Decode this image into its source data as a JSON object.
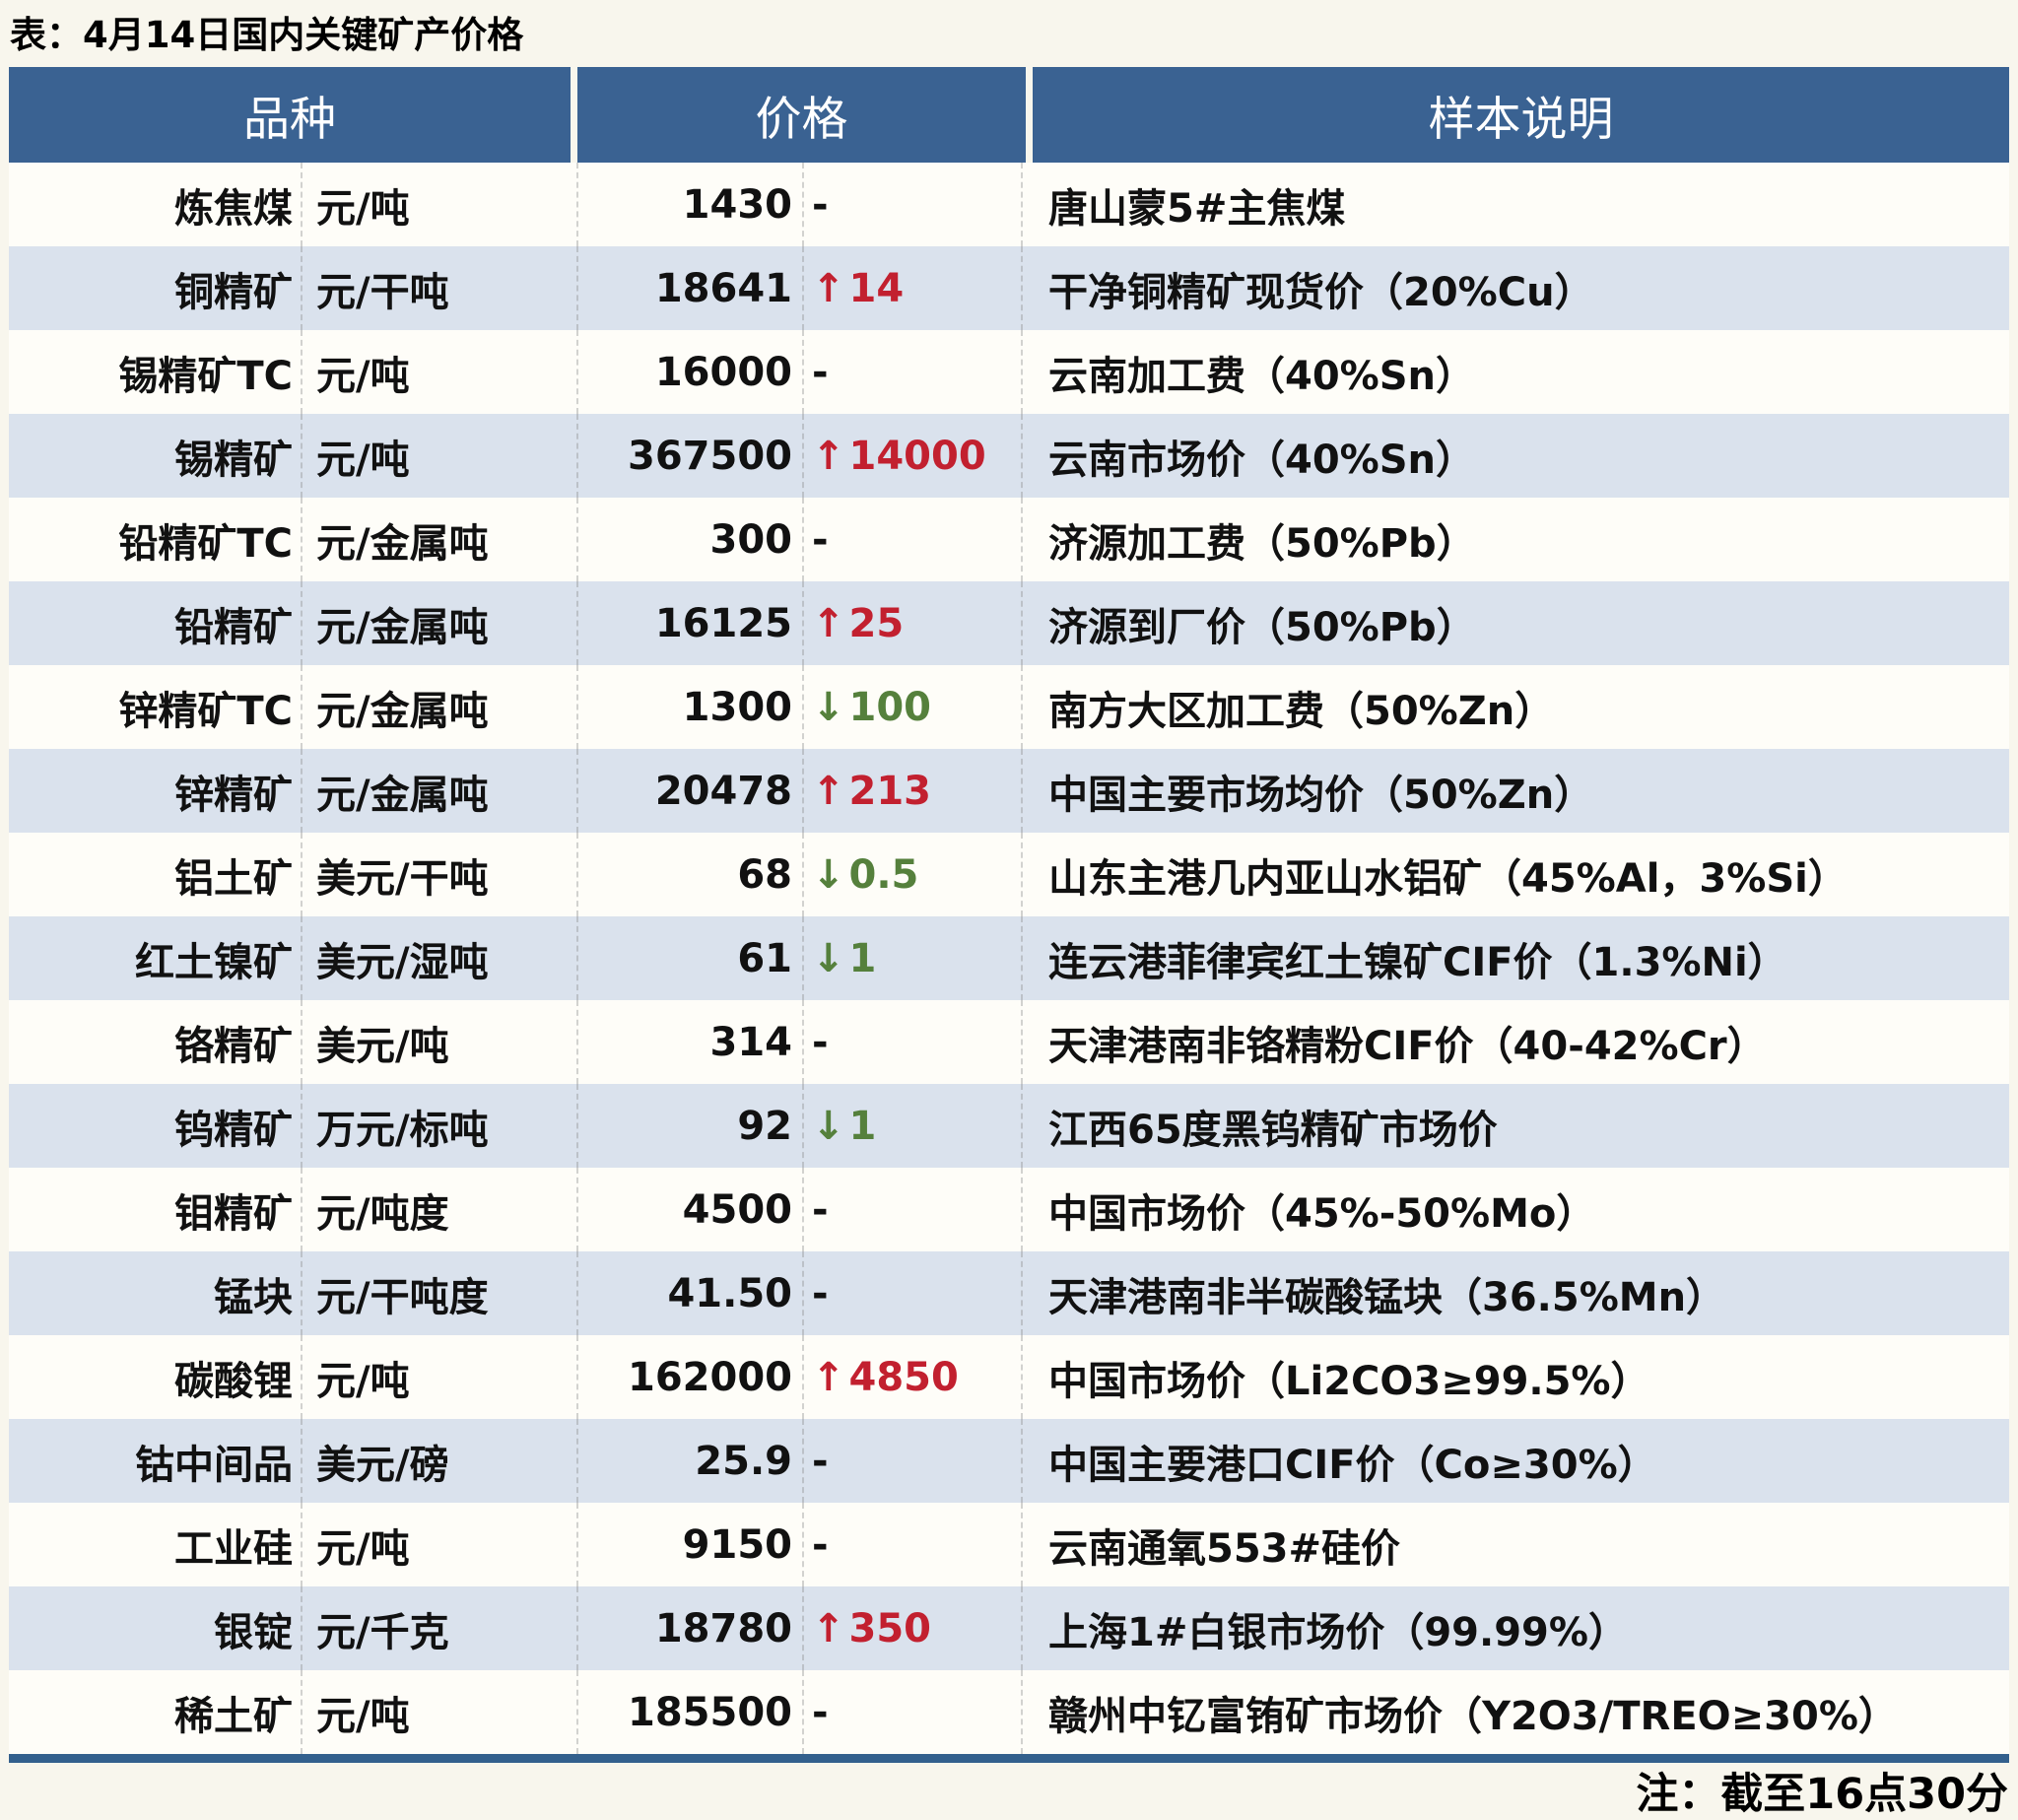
{
  "title": "表：4月14日国内关键矿产价格",
  "footnote": "注：截至16点30分",
  "icons": {
    "up_arrow": "↑",
    "down_arrow": "↓"
  },
  "colors": {
    "header_bg": "#3A6292",
    "row_bg": "#FEFDF8",
    "row_alt_bg": "#DAE2ED",
    "up": "#C2202F",
    "down": "#55803C",
    "bottom_bar": "#33608D",
    "page_bg": "#F8F6ED"
  },
  "table": {
    "headers": [
      "品种",
      "价格",
      "样本说明"
    ],
    "rows": [
      {
        "name": "炼焦煤",
        "unit": "元/吨",
        "price": "1430",
        "change": "-",
        "dir": "none",
        "desc": "唐山蒙5#主焦煤"
      },
      {
        "name": "铜精矿",
        "unit": "元/干吨",
        "price": "18641",
        "change": "14",
        "dir": "up",
        "desc": "干净铜精矿现货价（20%Cu）"
      },
      {
        "name": "锡精矿TC",
        "unit": "元/吨",
        "price": "16000",
        "change": "-",
        "dir": "none",
        "desc": "云南加工费（40%Sn）"
      },
      {
        "name": "锡精矿",
        "unit": "元/吨",
        "price": "367500",
        "change": "14000",
        "dir": "up",
        "desc": "云南市场价（40%Sn）"
      },
      {
        "name": "铅精矿TC",
        "unit": "元/金属吨",
        "price": "300",
        "change": "-",
        "dir": "none",
        "desc": "济源加工费（50%Pb）"
      },
      {
        "name": "铅精矿",
        "unit": "元/金属吨",
        "price": "16125",
        "change": "25",
        "dir": "up",
        "desc": "济源到厂价（50%Pb）"
      },
      {
        "name": "锌精矿TC",
        "unit": "元/金属吨",
        "price": "1300",
        "change": "100",
        "dir": "down",
        "desc": "南方大区加工费（50%Zn）"
      },
      {
        "name": "锌精矿",
        "unit": "元/金属吨",
        "price": "20478",
        "change": "213",
        "dir": "up",
        "desc": "中国主要市场均价（50%Zn）"
      },
      {
        "name": "铝土矿",
        "unit": "美元/干吨",
        "price": "68",
        "change": "0.5",
        "dir": "down",
        "desc": "山东主港几内亚山水铝矿（45%Al，3%Si）"
      },
      {
        "name": "红土镍矿",
        "unit": "美元/湿吨",
        "price": "61",
        "change": "1",
        "dir": "down",
        "desc": "连云港菲律宾红土镍矿CIF价（1.3%Ni）"
      },
      {
        "name": "铬精矿",
        "unit": "美元/吨",
        "price": "314",
        "change": "-",
        "dir": "none",
        "desc": "天津港南非铬精粉CIF价（40-42%Cr）"
      },
      {
        "name": "钨精矿",
        "unit": "万元/标吨",
        "price": "92",
        "change": "1",
        "dir": "down",
        "desc": "江西65度黑钨精矿市场价"
      },
      {
        "name": "钼精矿",
        "unit": "元/吨度",
        "price": "4500",
        "change": "-",
        "dir": "none",
        "desc": "中国市场价（45%-50%Mo）"
      },
      {
        "name": "锰块",
        "unit": "元/干吨度",
        "price": "41.50",
        "change": "-",
        "dir": "none",
        "desc": "天津港南非半碳酸锰块（36.5%Mn）"
      },
      {
        "name": "碳酸锂",
        "unit": "元/吨",
        "price": "162000",
        "change": "4850",
        "dir": "up",
        "desc": "中国市场价（Li2CO3≥99.5%）"
      },
      {
        "name": "钴中间品",
        "unit": "美元/磅",
        "price": "25.9",
        "change": "-",
        "dir": "none",
        "desc": "中国主要港口CIF价（Co≥30%）"
      },
      {
        "name": "工业硅",
        "unit": "元/吨",
        "price": "9150",
        "change": "-",
        "dir": "none",
        "desc": "云南通氧553#硅价"
      },
      {
        "name": "银锭",
        "unit": "元/千克",
        "price": "18780",
        "change": "350",
        "dir": "up",
        "desc": "上海1#白银市场价（99.99%）"
      },
      {
        "name": "稀土矿",
        "unit": "元/吨",
        "price": "185500",
        "change": "-",
        "dir": "none",
        "desc": "赣州中钇富铕矿市场价（Y2O3/TREO≥30%）"
      }
    ]
  }
}
